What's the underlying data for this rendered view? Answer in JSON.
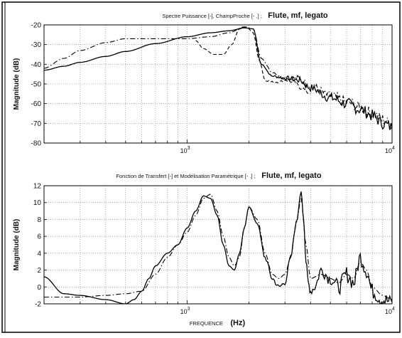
{
  "chart_data": [
    {
      "type": "line",
      "title_small": "Spectre Puissance [-], ChampProche [- .] ;",
      "title_bold": "Flute, mf, legato",
      "xlabel": "",
      "ylabel": "Magnitude (dB)",
      "x_scale": "log",
      "xlim": [
        200,
        10000
      ],
      "ylim": [
        -80,
        -20
      ],
      "y_ticks": [
        -20,
        -30,
        -40,
        -50,
        -60,
        -70,
        -80
      ],
      "x_tick_labels": [
        {
          "value": 1000,
          "base": "10",
          "exp": "3"
        },
        {
          "value": 10000,
          "base": "10",
          "exp": "4"
        }
      ],
      "grid": true,
      "series": [
        {
          "style": "solid",
          "x": [
            200,
            250,
            300,
            400,
            500,
            700,
            1000,
            1300,
            1600,
            1900,
            2100,
            2300,
            2600,
            3000,
            3500,
            4000,
            5000,
            6000,
            7000,
            8000,
            9000,
            10000
          ],
          "y": [
            -43,
            -41,
            -39,
            -36,
            -33.5,
            -29.5,
            -26,
            -24,
            -23,
            -21.5,
            -22,
            -40,
            -46,
            -47,
            -48,
            -52,
            -57,
            -60,
            -63,
            -66,
            -70,
            -72
          ],
          "noise": [
            0,
            0,
            0,
            0,
            0,
            0,
            0,
            0,
            0,
            0,
            0,
            0,
            0.5,
            1,
            1.5,
            2,
            2.5,
            3,
            3,
            3,
            3,
            3
          ]
        },
        {
          "style": "dash-dot",
          "x": [
            200,
            250,
            300,
            400,
            500,
            700,
            1000,
            1300,
            1600,
            1900,
            2100,
            2300,
            2600,
            3000,
            3500,
            4000,
            5000,
            6000,
            7000,
            8000,
            9000,
            10000
          ],
          "y": [
            -42,
            -37,
            -33,
            -29,
            -27,
            -27,
            -27,
            -26,
            -24,
            -21,
            -22,
            -37,
            -44,
            -47,
            -47,
            -51,
            -56,
            -59,
            -62,
            -65,
            -68,
            -71
          ],
          "noise": [
            0,
            0,
            0,
            0,
            0,
            0,
            0,
            0,
            0,
            0,
            0,
            0,
            0.5,
            1,
            1.5,
            2,
            2.5,
            3,
            3,
            3,
            3,
            3
          ]
        },
        {
          "style": "dashed",
          "x": [
            1100,
            1200,
            1350,
            1500,
            1650,
            1800,
            1950,
            2100,
            2250,
            2400,
            2600,
            2800,
            3000,
            3300,
            3600,
            4000
          ],
          "y": [
            -28,
            -32,
            -35,
            -35,
            -30,
            -22,
            -21,
            -24,
            -38,
            -48,
            -49,
            -49,
            -48,
            -49,
            -52,
            -55
          ],
          "noise": [
            0,
            0,
            0,
            0,
            0,
            0,
            0,
            0,
            0,
            0.5,
            0.5,
            0.5,
            0.5,
            1,
            1,
            1
          ]
        }
      ]
    },
    {
      "type": "line",
      "title_small": "Fonction de Transfert [-] et Modélisation Paramétrique [- .] ;",
      "title_bold": "Flute, mf, legato",
      "xlabel_small": "FREQUENCE",
      "xlabel_bold": "(Hz)",
      "ylabel": "Magnitude (dB)",
      "x_scale": "log",
      "xlim": [
        200,
        10000
      ],
      "ylim": [
        -2,
        12
      ],
      "y_ticks": [
        12,
        10,
        8,
        6,
        4,
        2,
        0,
        -2
      ],
      "x_tick_labels": [
        {
          "value": 1000,
          "base": "10",
          "exp": "3"
        },
        {
          "value": 10000,
          "base": "10",
          "exp": "4"
        }
      ],
      "grid": true,
      "series": [
        {
          "style": "solid",
          "x": [
            200,
            250,
            300,
            400,
            500,
            550,
            600,
            650,
            700,
            800,
            900,
            1000,
            1100,
            1200,
            1300,
            1400,
            1500,
            1600,
            1700,
            1800,
            1900,
            2000,
            2200,
            2400,
            2600,
            2800,
            3000,
            3200,
            3400,
            3600,
            3700,
            3800,
            3900,
            4000,
            4200,
            4500,
            5000,
            5500,
            6000,
            6500,
            7000,
            7500,
            8000,
            9000,
            10000
          ],
          "y": [
            1.2,
            -0.8,
            -1.0,
            -1.5,
            -2.0,
            -1.5,
            -0.5,
            1.0,
            2.5,
            4.0,
            5.0,
            7.0,
            9.0,
            10.8,
            10.5,
            8.5,
            5.0,
            2.5,
            2.0,
            4.0,
            7.0,
            9.5,
            7.5,
            3.5,
            1.0,
            0.0,
            0.5,
            3.5,
            7.5,
            11.3,
            8.0,
            3.0,
            0.5,
            -0.5,
            0.0,
            2.0,
            1.0,
            0.0,
            1.5,
            0.5,
            3.5,
            2.0,
            -0.5,
            -1.5,
            -1.8
          ],
          "noise": [
            0,
            0,
            0,
            0,
            0,
            0,
            0,
            0,
            0,
            0,
            0,
            0,
            0,
            0,
            0,
            0,
            0,
            0,
            0,
            0,
            0,
            0,
            0,
            0.3,
            0.3,
            0.3,
            0.3,
            0.3,
            0.3,
            0,
            0,
            0.3,
            0.4,
            0.5,
            0.6,
            0.7,
            0.8,
            0.9,
            1,
            1,
            1,
            1,
            1,
            1,
            0.8
          ]
        },
        {
          "style": "dash-dot",
          "x": [
            200,
            300,
            400,
            500,
            600,
            700,
            800,
            900,
            1000,
            1100,
            1200,
            1300,
            1400,
            1500,
            1600,
            1700,
            1800,
            1900,
            2000,
            2200,
            2400,
            2600,
            2800,
            3000,
            3200,
            3400,
            3600,
            3800,
            4000,
            4500,
            5000,
            5500,
            6000,
            6500,
            7000,
            7500,
            8000,
            9000,
            10000
          ],
          "y": [
            -1.2,
            -1.2,
            -1.0,
            -0.8,
            -0.5,
            1.5,
            3.5,
            5.0,
            6.5,
            8.5,
            10.5,
            11.0,
            9.0,
            6.0,
            3.5,
            2.5,
            3.5,
            7.0,
            9.5,
            8.0,
            4.0,
            1.5,
            1.0,
            1.5,
            3.5,
            7.5,
            10.5,
            5.0,
            1.0,
            1.5,
            1.0,
            0.5,
            1.5,
            1.0,
            3.0,
            2.0,
            0.0,
            -1.0,
            -1.5
          ],
          "noise": [
            0,
            0,
            0,
            0,
            0,
            0,
            0,
            0,
            0,
            0,
            0,
            0,
            0,
            0,
            0,
            0,
            0,
            0,
            0,
            0,
            0,
            0,
            0,
            0,
            0,
            0,
            0,
            0,
            0,
            0,
            0,
            0,
            0,
            0,
            0,
            0,
            0,
            0,
            0
          ]
        }
      ]
    }
  ]
}
